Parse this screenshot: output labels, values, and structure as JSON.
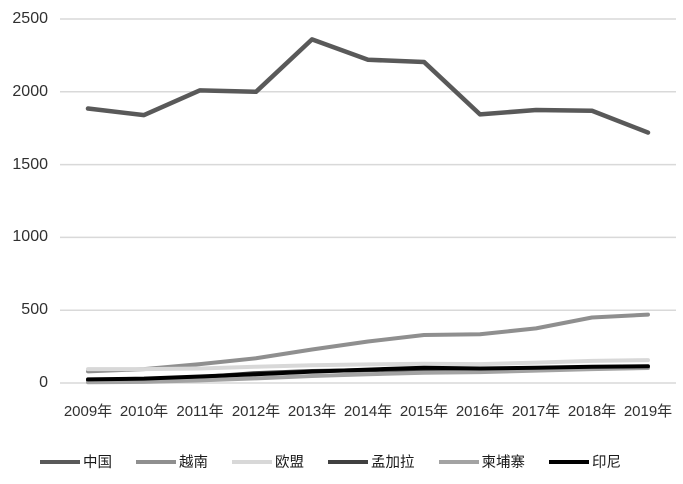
{
  "chart_data": {
    "type": "line",
    "title": "",
    "xlabel": "",
    "ylabel": "",
    "categories": [
      "2009年",
      "2010年",
      "2011年",
      "2012年",
      "2013年",
      "2014年",
      "2015年",
      "2016年",
      "2017年",
      "2018年",
      "2019年"
    ],
    "series": [
      {
        "name": "中国",
        "color": "#595959",
        "stroke_width": 4.5,
        "values": [
          1885,
          1840,
          2010,
          2000,
          2360,
          2220,
          2205,
          1845,
          1875,
          1870,
          1720
        ]
      },
      {
        "name": "越南",
        "color": "#8f8f8f",
        "stroke_width": 4,
        "values": [
          80,
          95,
          130,
          170,
          230,
          285,
          330,
          335,
          375,
          450,
          470
        ]
      },
      {
        "name": "欧盟",
        "color": "#d8d8d8",
        "stroke_width": 4,
        "values": [
          95,
          95,
          100,
          112,
          122,
          128,
          132,
          130,
          140,
          152,
          157
        ]
      },
      {
        "name": "孟加拉",
        "color": "#404040",
        "stroke_width": 4,
        "values": [
          15,
          22,
          40,
          68,
          82,
          88,
          95,
          92,
          100,
          105,
          108
        ]
      },
      {
        "name": "柬埔寨",
        "color": "#a3a3a3",
        "stroke_width": 4,
        "values": [
          5,
          8,
          18,
          32,
          48,
          60,
          70,
          75,
          85,
          95,
          103
        ]
      },
      {
        "name": "印尼",
        "color": "#000000",
        "stroke_width": 4,
        "values": [
          25,
          30,
          45,
          60,
          78,
          92,
          105,
          100,
          105,
          112,
          115
        ]
      }
    ],
    "ylim": [
      0,
      2500
    ],
    "yticks": [
      0,
      500,
      1000,
      1500,
      2000,
      2500
    ],
    "grid": true,
    "gridline_color": "#d9d9d9",
    "axis_text_color": "#303030",
    "legend_position": "bottom",
    "legend_text_color": "#1a1a1a"
  }
}
